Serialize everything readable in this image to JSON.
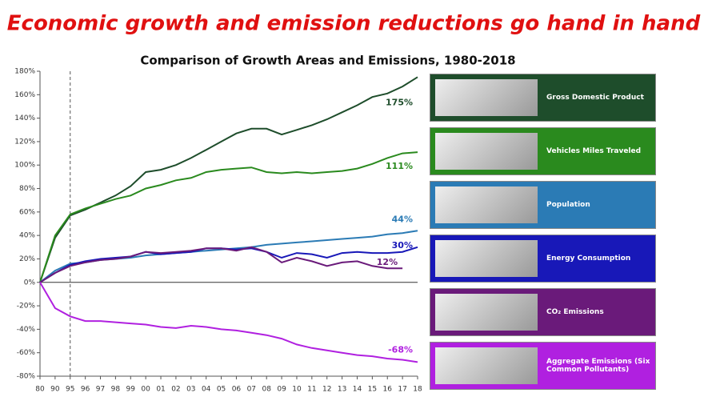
{
  "headline": "Economic growth and emission reductions go hand in hand",
  "chart_data": {
    "type": "line",
    "title": "Comparison of Growth Areas and Emissions, 1980-2018",
    "categories": [
      "80",
      "90",
      "95",
      "96",
      "97",
      "98",
      "99",
      "00",
      "01",
      "02",
      "03",
      "04",
      "05",
      "06",
      "07",
      "08",
      "09",
      "10",
      "11",
      "12",
      "13",
      "14",
      "15",
      "16",
      "17",
      "18"
    ],
    "ylim": [
      -80,
      180
    ],
    "yticks": [
      {
        "value": -80,
        "label": "-80%"
      },
      {
        "value": -60,
        "label": "-60%"
      },
      {
        "value": -40,
        "label": "-40%"
      },
      {
        "value": -20,
        "label": "-20%"
      },
      {
        "value": 0,
        "label": "0%"
      },
      {
        "value": 20,
        "label": "20%"
      },
      {
        "value": 40,
        "label": "40%"
      },
      {
        "value": 60,
        "label": "60%"
      },
      {
        "value": 80,
        "label": "80%"
      },
      {
        "value": 100,
        "label": "100%"
      },
      {
        "value": 120,
        "label": "120%"
      },
      {
        "value": 140,
        "label": "140%"
      },
      {
        "value": 160,
        "label": "160%"
      },
      {
        "value": 180,
        "label": "180%"
      }
    ],
    "series": [
      {
        "name": "Gross Domestic Product",
        "color": "#1e4d2b",
        "end_label": "175%",
        "values": [
          0,
          38,
          57,
          62,
          68,
          74,
          82,
          94,
          96,
          100,
          106,
          113,
          120,
          127,
          131,
          131,
          126,
          130,
          134,
          139,
          145,
          151,
          158,
          161,
          167,
          175
        ]
      },
      {
        "name": "Vehicles Miles Traveled",
        "color": "#2a8a1e",
        "end_label": "111%",
        "values": [
          0,
          40,
          58,
          63,
          67,
          71,
          74,
          80,
          83,
          87,
          89,
          94,
          96,
          97,
          98,
          94,
          93,
          94,
          93,
          94,
          95,
          97,
          101,
          106,
          110,
          111
        ]
      },
      {
        "name": "Population",
        "color": "#2b7bb5",
        "end_label": "44%",
        "values": [
          0,
          10,
          16,
          17,
          19,
          20,
          21,
          23,
          24,
          25,
          26,
          27,
          28,
          29,
          30,
          32,
          33,
          34,
          35,
          36,
          37,
          38,
          39,
          41,
          42,
          44
        ]
      },
      {
        "name": "Energy Consumption",
        "color": "#1818b8",
        "end_label": "30%",
        "values": [
          0,
          8,
          15,
          18,
          20,
          21,
          22,
          26,
          24,
          25,
          26,
          29,
          29,
          28,
          29,
          26,
          21,
          25,
          24,
          21,
          25,
          26,
          25,
          25,
          26,
          30
        ]
      },
      {
        "name": "CO₂ Emissions",
        "color": "#6a1a7a",
        "end_label": "12%",
        "values": [
          0,
          8,
          14,
          17,
          19,
          20,
          22,
          26,
          25,
          26,
          27,
          29,
          29,
          27,
          30,
          26,
          17,
          21,
          18,
          14,
          17,
          18,
          14,
          12,
          12,
          null
        ]
      },
      {
        "name": "Aggregate Emissions (Six Common Pollutants)",
        "color": "#b020e0",
        "end_label": "-68%",
        "values": [
          0,
          -22,
          -29,
          -33,
          -33,
          -34,
          -35,
          -36,
          -38,
          -39,
          -37,
          -38,
          -40,
          -41,
          -43,
          -45,
          -48,
          -53,
          -56,
          -58,
          -60,
          -62,
          -63,
          -65,
          -66,
          -68
        ]
      }
    ]
  }
}
